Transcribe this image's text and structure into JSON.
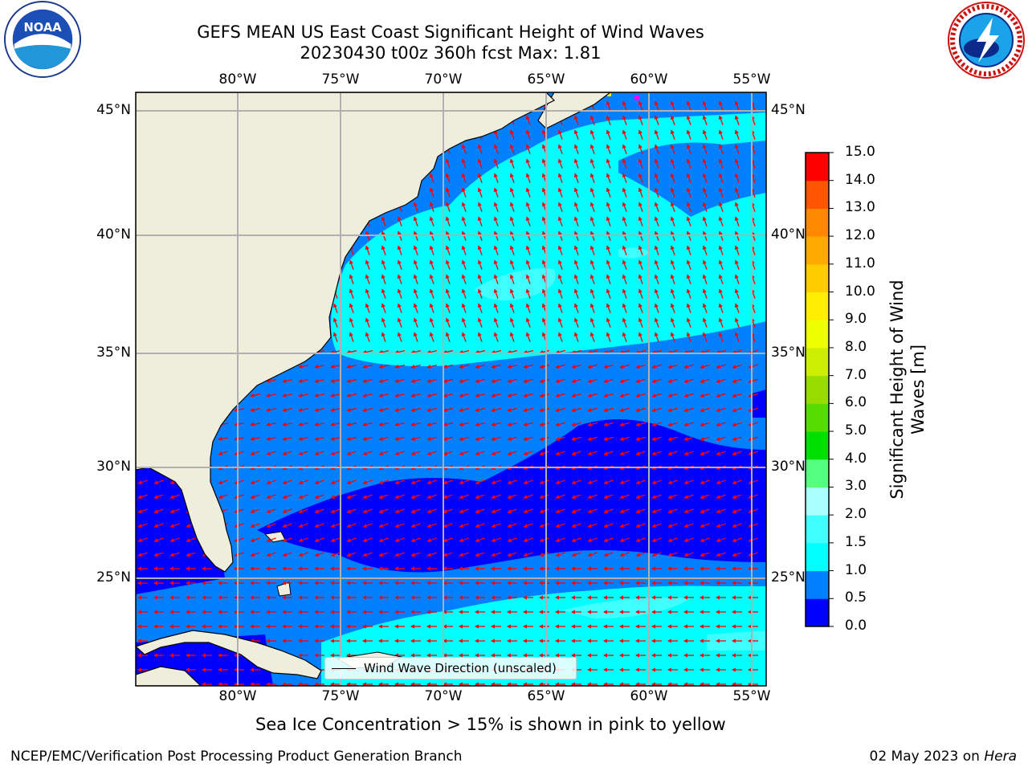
{
  "title_line1": "GEFS MEAN US East Coast Significant Height of Wind Waves",
  "title_line2": "20230430 t00z 360h fcst   Max: 1.81",
  "logos": {
    "left": {
      "icon": "noaa-logo",
      "text": "NOAA"
    },
    "right": {
      "icon": "nws-logo",
      "text": "NATIONAL WEATHER SERVICE"
    }
  },
  "map": {
    "lon_labels": [
      "80°W",
      "75°W",
      "70°W",
      "65°W",
      "60°W",
      "55°W"
    ],
    "lat_labels": [
      "45°N",
      "40°N",
      "35°N",
      "30°N",
      "25°N"
    ],
    "lon_range": [
      -85,
      -54.5
    ],
    "lat_range": [
      20.5,
      46
    ],
    "land_color": "#efeedc",
    "arrow_color": "#ff0000",
    "sea_ice_color": "#ff00ff",
    "gridline_color": "#b0b0b0"
  },
  "colorbar": {
    "title_line1": "Significant Height of Wind",
    "title_line2": "Waves [m]",
    "ticks": [
      "0.0",
      "0.5",
      "1.0",
      "1.5",
      "2.0",
      "3.0",
      "4.0",
      "5.0",
      "6.0",
      "7.0",
      "8.0",
      "9.0",
      "10.0",
      "11.0",
      "12.0",
      "13.0",
      "14.0",
      "15.0"
    ],
    "colors": [
      "#0000ff",
      "#0080ff",
      "#00ffff",
      "#40ffff",
      "#aaffff",
      "#55ff80",
      "#00e000",
      "#55dd00",
      "#99dd00",
      "#ccee00",
      "#eeff00",
      "#ffee00",
      "#ffcc00",
      "#ffaa00",
      "#ff8800",
      "#ff5500",
      "#ff0000"
    ]
  },
  "legend_label": "Wind Wave Direction (unscaled)",
  "sea_ice_note": "Sea Ice Concentration > 15% is shown in pink to yellow",
  "footer_left": "NCEP/EMC/Verification Post Processing Product Generation Branch",
  "footer_date": "02 May 2023 on ",
  "footer_machine": "Hera"
}
